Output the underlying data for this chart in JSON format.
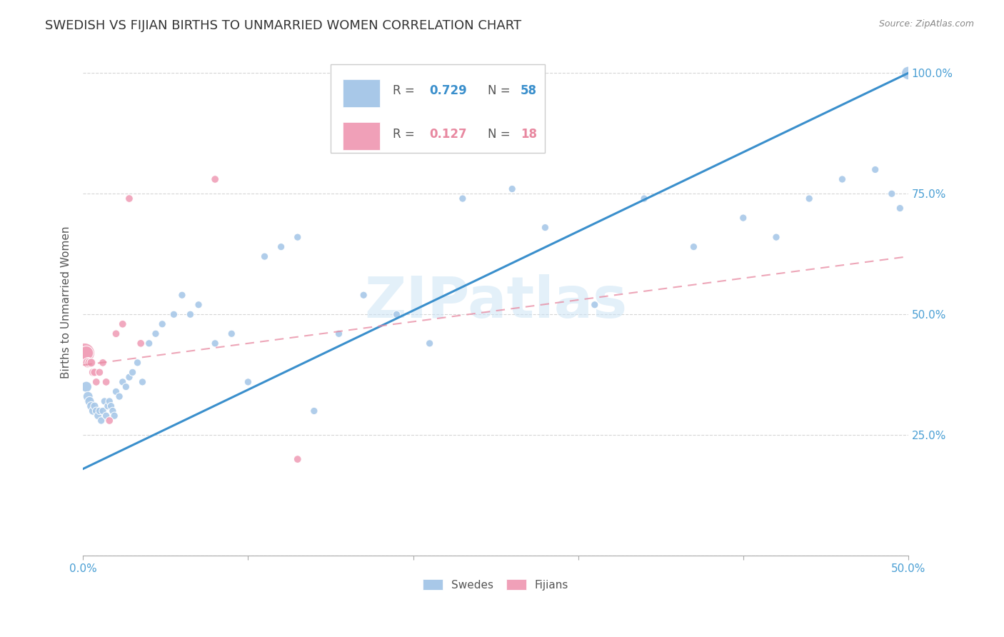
{
  "title": "SWEDISH VS FIJIAN BIRTHS TO UNMARRIED WOMEN CORRELATION CHART",
  "source": "Source: ZipAtlas.com",
  "ylabel": "Births to Unmarried Women",
  "background_color": "#ffffff",
  "watermark": "ZIPatlas",
  "swedes_color": "#a8c8e8",
  "fijians_color": "#f0a0b8",
  "blue_line_color": "#3a8fcc",
  "pink_line_color": "#e888a0",
  "swedes_x": [
    0.002,
    0.003,
    0.004,
    0.005,
    0.006,
    0.007,
    0.008,
    0.009,
    0.01,
    0.011,
    0.012,
    0.013,
    0.014,
    0.015,
    0.016,
    0.017,
    0.018,
    0.019,
    0.02,
    0.022,
    0.024,
    0.026,
    0.028,
    0.03,
    0.033,
    0.036,
    0.04,
    0.044,
    0.048,
    0.055,
    0.06,
    0.065,
    0.07,
    0.08,
    0.09,
    0.1,
    0.11,
    0.12,
    0.13,
    0.14,
    0.155,
    0.17,
    0.19,
    0.21,
    0.23,
    0.26,
    0.28,
    0.31,
    0.34,
    0.37,
    0.4,
    0.42,
    0.44,
    0.46,
    0.48,
    0.49,
    0.495,
    0.5
  ],
  "swedes_y": [
    0.35,
    0.33,
    0.32,
    0.31,
    0.3,
    0.31,
    0.3,
    0.29,
    0.3,
    0.28,
    0.3,
    0.32,
    0.29,
    0.31,
    0.32,
    0.31,
    0.3,
    0.29,
    0.34,
    0.33,
    0.36,
    0.35,
    0.37,
    0.38,
    0.4,
    0.36,
    0.44,
    0.46,
    0.48,
    0.5,
    0.54,
    0.5,
    0.52,
    0.44,
    0.46,
    0.36,
    0.62,
    0.64,
    0.66,
    0.3,
    0.46,
    0.54,
    0.5,
    0.44,
    0.74,
    0.76,
    0.68,
    0.52,
    0.74,
    0.64,
    0.7,
    0.66,
    0.74,
    0.78,
    0.8,
    0.75,
    0.72,
    1.0
  ],
  "swedes_size": [
    120,
    100,
    90,
    80,
    70,
    65,
    60,
    60,
    55,
    55,
    55,
    55,
    55,
    55,
    55,
    55,
    55,
    55,
    55,
    55,
    55,
    55,
    55,
    55,
    55,
    55,
    55,
    55,
    55,
    55,
    55,
    55,
    55,
    55,
    55,
    55,
    55,
    55,
    55,
    55,
    55,
    55,
    55,
    55,
    55,
    55,
    55,
    55,
    55,
    55,
    55,
    55,
    55,
    55,
    55,
    55,
    55,
    180
  ],
  "fijians_x": [
    0.001,
    0.002,
    0.003,
    0.004,
    0.005,
    0.006,
    0.007,
    0.008,
    0.01,
    0.012,
    0.014,
    0.016,
    0.02,
    0.024,
    0.028,
    0.035,
    0.08,
    0.13
  ],
  "fijians_y": [
    0.42,
    0.42,
    0.4,
    0.4,
    0.4,
    0.38,
    0.38,
    0.36,
    0.38,
    0.4,
    0.36,
    0.28,
    0.46,
    0.48,
    0.74,
    0.44,
    0.78,
    0.2
  ],
  "fijians_size": [
    400,
    200,
    110,
    90,
    75,
    70,
    65,
    60,
    60,
    60,
    60,
    60,
    60,
    60,
    60,
    60,
    60,
    60
  ],
  "blue_trendline_x": [
    0.0,
    0.5
  ],
  "blue_trendline_y": [
    0.18,
    1.0
  ],
  "pink_trendline_x": [
    0.0,
    0.5
  ],
  "pink_trendline_y": [
    0.395,
    0.62
  ],
  "xlim": [
    0.0,
    0.5
  ],
  "ylim": [
    0.0,
    1.05
  ],
  "xtick_vals": [
    0.0,
    0.1,
    0.2,
    0.3,
    0.4,
    0.5
  ],
  "ytick_vals": [
    0.0,
    0.25,
    0.5,
    0.75,
    1.0
  ],
  "ytick_labels_right": [
    "",
    "25.0%",
    "50.0%",
    "75.0%",
    "100.0%"
  ]
}
